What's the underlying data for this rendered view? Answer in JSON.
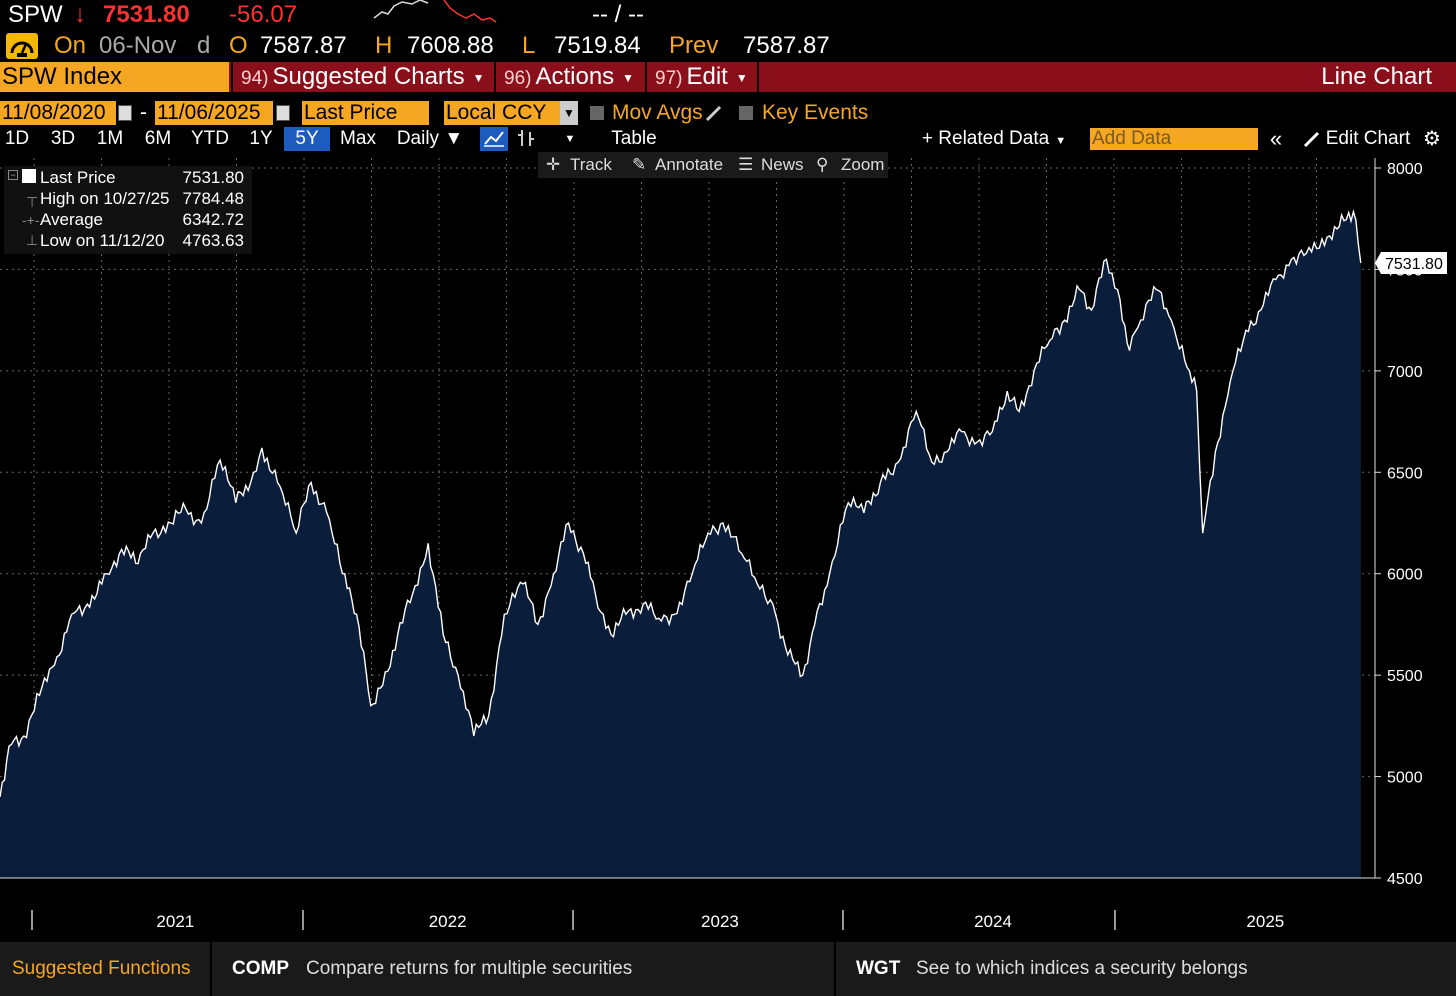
{
  "header": {
    "ticker": "SPW",
    "arrow": "↓",
    "last_price": "7531.80",
    "change": "-56.07",
    "bid_ask": "-- / --",
    "date_prefix": "On",
    "date": "06-Nov",
    "freq": "d",
    "open_label": "O",
    "open": "7587.87",
    "high_label": "H",
    "high": "7608.88",
    "low_label": "L",
    "low": "7519.84",
    "prev_label": "Prev",
    "prev": "7587.87"
  },
  "tabs": {
    "security": "SPW Index",
    "suggested_num": "94)",
    "suggested": "Suggested Charts",
    "actions_num": "96)",
    "actions": "Actions",
    "edit_num": "97)",
    "edit": "Edit",
    "chart_type": "Line Chart"
  },
  "options": {
    "start_date": "11/08/2020",
    "date_sep": "-",
    "end_date": "11/06/2025",
    "field": "Last Price",
    "currency": "Local CCY",
    "mov_avgs": "Mov Avgs",
    "key_events": "Key Events"
  },
  "toolbar": {
    "periods": [
      "1D",
      "3D",
      "1M",
      "6M",
      "YTD",
      "1Y",
      "5Y",
      "Max"
    ],
    "active_period": "5Y",
    "frequency": "Daily ▼",
    "table": "Table",
    "related_data": "+ Related Data",
    "add_data_placeholder": "Add Data",
    "collapse": "«",
    "edit_chart": "Edit Chart"
  },
  "chart_tools": {
    "track": "Track",
    "annotate": "Annotate",
    "news": "News",
    "zoom": "Zoom"
  },
  "legend": {
    "last_label": "Last Price",
    "last_value": "7531.80",
    "high_label": "High on 10/27/25",
    "high_value": "7784.48",
    "avg_label": "Average",
    "avg_value": "6342.72",
    "low_label": "Low on 11/12/20",
    "low_value": "4763.63"
  },
  "footer": {
    "title": "Suggested Functions",
    "f1_code": "COMP",
    "f1_desc": "Compare returns for multiple securities",
    "f2_code": "WGT",
    "f2_desc": "See to which indices a security belongs"
  },
  "colors": {
    "accent_orange": "#f5a623",
    "tab_red": "#8b0f1a",
    "down_red": "#ff3030",
    "area_fill": "#0a1e3c",
    "active_blue": "#1e5bbf"
  },
  "chart_data": {
    "type": "area",
    "series": [
      {
        "name": "Last Price",
        "points": [
          [
            "2020-11-08",
            4900
          ],
          [
            "2020-11-20",
            5150
          ],
          [
            "2020-12-10",
            5200
          ],
          [
            "2020-12-31",
            5400
          ],
          [
            "2021-01-20",
            5550
          ],
          [
            "2021-02-12",
            5800
          ],
          [
            "2021-03-05",
            5850
          ],
          [
            "2021-03-31",
            6000
          ],
          [
            "2021-04-20",
            6120
          ],
          [
            "2021-05-12",
            6050
          ],
          [
            "2021-06-01",
            6200
          ],
          [
            "2021-06-25",
            6250
          ],
          [
            "2021-07-15",
            6320
          ],
          [
            "2021-08-05",
            6250
          ],
          [
            "2021-08-30",
            6560
          ],
          [
            "2021-09-20",
            6350
          ],
          [
            "2021-10-10",
            6450
          ],
          [
            "2021-10-25",
            6620
          ],
          [
            "2021-11-15",
            6450
          ],
          [
            "2021-12-10",
            6200
          ],
          [
            "2021-12-30",
            6450
          ],
          [
            "2022-01-20",
            6300
          ],
          [
            "2022-02-10",
            6000
          ],
          [
            "2022-03-01",
            5800
          ],
          [
            "2022-03-20",
            5350
          ],
          [
            "2022-04-05",
            5450
          ],
          [
            "2022-04-25",
            5700
          ],
          [
            "2022-05-15",
            5900
          ],
          [
            "2022-06-05",
            6150
          ],
          [
            "2022-06-25",
            5700
          ],
          [
            "2022-07-15",
            5500
          ],
          [
            "2022-08-05",
            5200
          ],
          [
            "2022-08-25",
            5300
          ],
          [
            "2022-09-15",
            5800
          ],
          [
            "2022-10-10",
            5950
          ],
          [
            "2022-10-30",
            5750
          ],
          [
            "2022-11-20",
            6000
          ],
          [
            "2022-12-10",
            6250
          ],
          [
            "2022-12-30",
            6100
          ],
          [
            "2023-01-15",
            5900
          ],
          [
            "2023-02-05",
            5700
          ],
          [
            "2023-02-25",
            5800
          ],
          [
            "2023-03-20",
            5850
          ],
          [
            "2023-04-10",
            5780
          ],
          [
            "2023-05-01",
            5800
          ],
          [
            "2023-05-25",
            6000
          ],
          [
            "2023-06-15",
            6200
          ],
          [
            "2023-07-05",
            6250
          ],
          [
            "2023-07-30",
            6100
          ],
          [
            "2023-08-20",
            5950
          ],
          [
            "2023-09-10",
            5850
          ],
          [
            "2023-09-30",
            5600
          ],
          [
            "2023-10-20",
            5500
          ],
          [
            "2023-11-05",
            5750
          ],
          [
            "2023-11-25",
            6000
          ],
          [
            "2023-12-20",
            6350
          ],
          [
            "2024-01-10",
            6300
          ],
          [
            "2024-02-01",
            6450
          ],
          [
            "2024-02-25",
            6550
          ],
          [
            "2024-03-20",
            6800
          ],
          [
            "2024-04-10",
            6550
          ],
          [
            "2024-04-30",
            6600
          ],
          [
            "2024-05-20",
            6700
          ],
          [
            "2024-06-10",
            6650
          ],
          [
            "2024-06-30",
            6700
          ],
          [
            "2024-07-20",
            6900
          ],
          [
            "2024-08-05",
            6800
          ],
          [
            "2024-08-25",
            7000
          ],
          [
            "2024-09-15",
            7150
          ],
          [
            "2024-10-05",
            7250
          ],
          [
            "2024-10-25",
            7400
          ],
          [
            "2024-11-10",
            7300
          ],
          [
            "2024-11-30",
            7550
          ],
          [
            "2024-12-15",
            7400
          ],
          [
            "2024-12-31",
            7100
          ],
          [
            "2025-01-15",
            7250
          ],
          [
            "2025-02-05",
            7400
          ],
          [
            "2025-02-25",
            7250
          ],
          [
            "2025-03-15",
            7050
          ],
          [
            "2025-03-31",
            6900
          ],
          [
            "2025-04-08",
            6200
          ],
          [
            "2025-04-25",
            6600
          ],
          [
            "2025-05-15",
            6950
          ],
          [
            "2025-06-05",
            7200
          ],
          [
            "2025-06-25",
            7300
          ],
          [
            "2025-07-15",
            7450
          ],
          [
            "2025-08-05",
            7550
          ],
          [
            "2025-08-25",
            7580
          ],
          [
            "2025-09-15",
            7650
          ],
          [
            "2025-10-05",
            7700
          ],
          [
            "2025-10-27",
            7784
          ],
          [
            "2025-11-06",
            7531.8
          ]
        ]
      }
    ],
    "y_ticks": [
      4500,
      5000,
      5500,
      6000,
      6500,
      7000,
      7500,
      8000
    ],
    "y_tick_labels": [
      "4500",
      "5000",
      "5500",
      "6000",
      "6500",
      "7000",
      "7500",
      "8000"
    ],
    "ylim": [
      4500,
      8000
    ],
    "x_ticks": [
      "2021-01-01",
      "2022-01-01",
      "2023-01-01",
      "2024-01-01",
      "2025-01-01"
    ],
    "x_tick_labels": [
      "2021",
      "2022",
      "2023",
      "2024",
      "2025"
    ],
    "xlim": [
      "2020-11-08",
      "2025-11-25"
    ],
    "grid": true,
    "last_value_label": "7531.80"
  }
}
